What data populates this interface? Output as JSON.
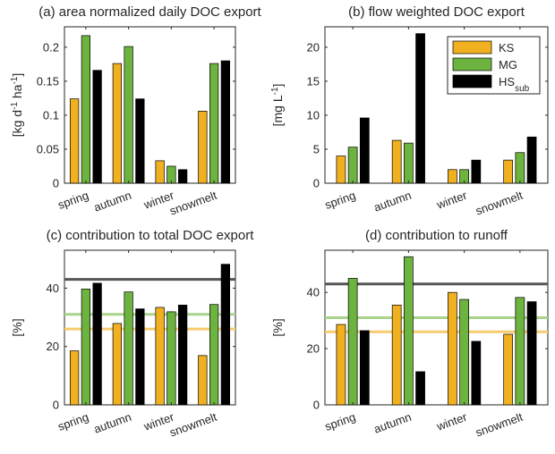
{
  "chart_data": [
    {
      "type": "bar",
      "title": "(a) area normalized daily DOC export",
      "ylabel": "[kg d⁻¹ ha⁻¹]",
      "ylabel_parts": [
        "[kg d",
        "-1",
        " ha",
        "-1",
        "]"
      ],
      "categories": [
        "spring",
        "autumn",
        "winter",
        "snowmelt"
      ],
      "ylim": [
        0,
        0.23
      ],
      "yticks": [
        0,
        0.05,
        0.1,
        0.15,
        0.2
      ],
      "ytick_labels": [
        "0",
        "0.05",
        "0.1",
        "0.15",
        "0.2"
      ],
      "series": [
        {
          "name": "KS",
          "values": [
            0.124,
            0.176,
            0.033,
            0.106
          ]
        },
        {
          "name": "MG",
          "values": [
            0.217,
            0.201,
            0.025,
            0.176
          ]
        },
        {
          "name": "HSsub",
          "values": [
            0.166,
            0.124,
            0.02,
            0.18
          ]
        }
      ],
      "hlines": []
    },
    {
      "type": "bar",
      "title": "(b) flow weighted DOC export",
      "ylabel": "[mg L⁻¹]",
      "ylabel_parts": [
        "[mg L",
        "-1",
        "]"
      ],
      "categories": [
        "spring",
        "autumn",
        "winter",
        "snowmelt"
      ],
      "ylim": [
        0,
        23
      ],
      "yticks": [
        0,
        5,
        10,
        15,
        20
      ],
      "ytick_labels": [
        "0",
        "5",
        "10",
        "15",
        "20"
      ],
      "series": [
        {
          "name": "KS",
          "values": [
            4.0,
            6.3,
            2.0,
            3.4
          ]
        },
        {
          "name": "MG",
          "values": [
            5.3,
            5.9,
            2.0,
            4.5
          ]
        },
        {
          "name": "HSsub",
          "values": [
            9.6,
            22.0,
            3.4,
            6.8
          ]
        }
      ],
      "legend": {
        "position": "top-right",
        "entries": [
          {
            "label": "KS",
            "sub": ""
          },
          {
            "label": "MG",
            "sub": ""
          },
          {
            "label": "HS",
            "sub": "sub"
          }
        ]
      },
      "hlines": []
    },
    {
      "type": "bar",
      "title": "(c) contribution to total DOC export",
      "ylabel": "[%]",
      "ylabel_parts": [
        "[%]"
      ],
      "categories": [
        "spring",
        "autumn",
        "winter",
        "snowmelt"
      ],
      "ylim": [
        0,
        53
      ],
      "yticks": [
        0,
        20,
        40
      ],
      "ytick_labels": [
        "0",
        "20",
        "40"
      ],
      "series": [
        {
          "name": "KS",
          "values": [
            18.5,
            27.9,
            33.4,
            16.9
          ]
        },
        {
          "name": "MG",
          "values": [
            39.7,
            38.7,
            31.9,
            34.4
          ]
        },
        {
          "name": "HSsub",
          "values": [
            41.7,
            32.9,
            34.2,
            48.2
          ]
        }
      ],
      "hlines": [
        {
          "series": "HSsub",
          "value": 43
        },
        {
          "series": "MG",
          "value": 31
        },
        {
          "series": "KS",
          "value": 26
        }
      ]
    },
    {
      "type": "bar",
      "title": "(d) contribution to runoff",
      "ylabel": "[%]",
      "ylabel_parts": [
        "[%]"
      ],
      "categories": [
        "spring",
        "autumn",
        "winter",
        "snowmelt"
      ],
      "ylim": [
        0,
        55
      ],
      "yticks": [
        0,
        20,
        40
      ],
      "ytick_labels": [
        "0",
        "20",
        "40"
      ],
      "series": [
        {
          "name": "KS",
          "values": [
            28.6,
            35.5,
            40.0,
            25.1
          ]
        },
        {
          "name": "MG",
          "values": [
            45.0,
            52.7,
            37.5,
            38.2
          ]
        },
        {
          "name": "HSsub",
          "values": [
            26.4,
            11.8,
            22.6,
            36.7
          ]
        }
      ],
      "hlines": [
        {
          "series": "HSsub",
          "value": 43
        },
        {
          "series": "MG",
          "value": 31
        },
        {
          "series": "KS",
          "value": 26
        }
      ]
    }
  ],
  "colors": {
    "KS": "#f0b020",
    "MG": "#6db33f",
    "HSsub": "#000000",
    "line_KS": "#f7cc6e",
    "line_MG": "#a9d48a",
    "line_HSsub": "#555555"
  }
}
